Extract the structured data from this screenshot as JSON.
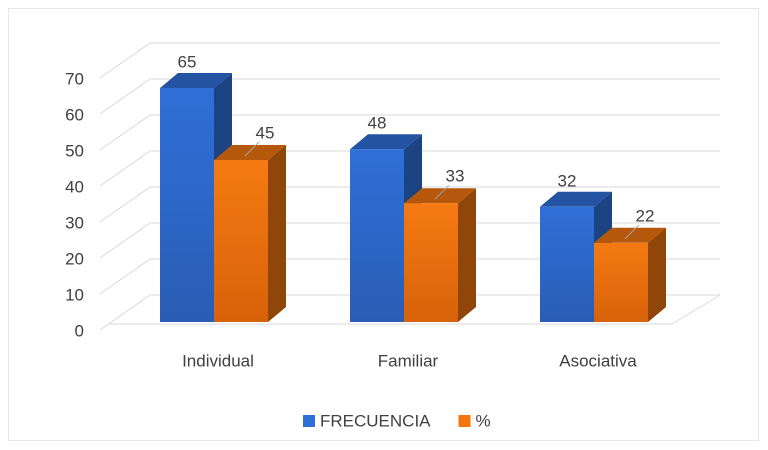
{
  "chart_data": {
    "type": "bar3d",
    "categories": [
      "Individual",
      "Familiar",
      "Asociativa"
    ],
    "series": [
      {
        "name": "FRECUENCIA",
        "color": "#2f6fd8",
        "values": [
          65,
          48,
          32
        ]
      },
      {
        "name": "%",
        "color": "#f2750f",
        "values": [
          45,
          33,
          22
        ]
      }
    ],
    "ylim": [
      0,
      70
    ],
    "yticks": [
      0,
      10,
      20,
      30,
      40,
      50,
      60,
      70
    ],
    "grid": true,
    "legend": "bottom"
  }
}
